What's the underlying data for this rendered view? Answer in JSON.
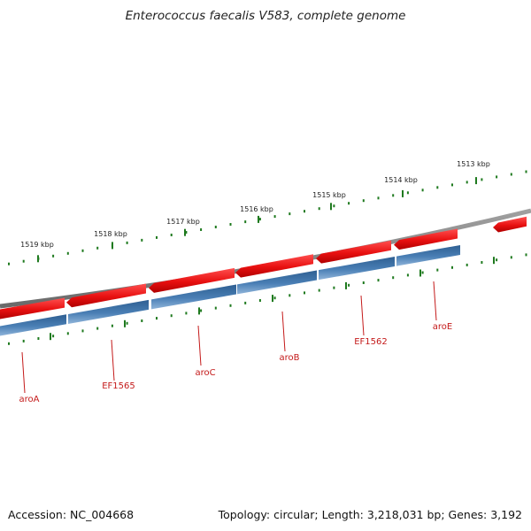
{
  "title": "Enterococcus faecalis V583, complete genome",
  "accession": "Accession: NC_004668",
  "summary": "Topology: circular; Length: 3,218,031 bp; Genes: 3,192",
  "colors": {
    "backbone": "#808080",
    "forward_gene": "#e81010",
    "reverse_gene": "#4a7fb5",
    "tick": "#1f7a1f",
    "gene_label": "#c41a1a"
  },
  "scale_labels": [
    {
      "kbp": 1513,
      "text": "1513 kbp"
    },
    {
      "kbp": 1514,
      "text": "1514 kbp"
    },
    {
      "kbp": 1515,
      "text": "1515 kbp"
    },
    {
      "kbp": 1516,
      "text": "1516 kbp"
    },
    {
      "kbp": 1517,
      "text": "1517 kbp"
    },
    {
      "kbp": 1518,
      "text": "1518 kbp"
    },
    {
      "kbp": 1519,
      "text": "1519 kbp"
    }
  ],
  "gene_labels": [
    {
      "name": "aroA"
    },
    {
      "name": "EF1565"
    },
    {
      "name": "aroC"
    },
    {
      "name": "aroB"
    },
    {
      "name": "EF1562"
    },
    {
      "name": "aroE"
    }
  ]
}
